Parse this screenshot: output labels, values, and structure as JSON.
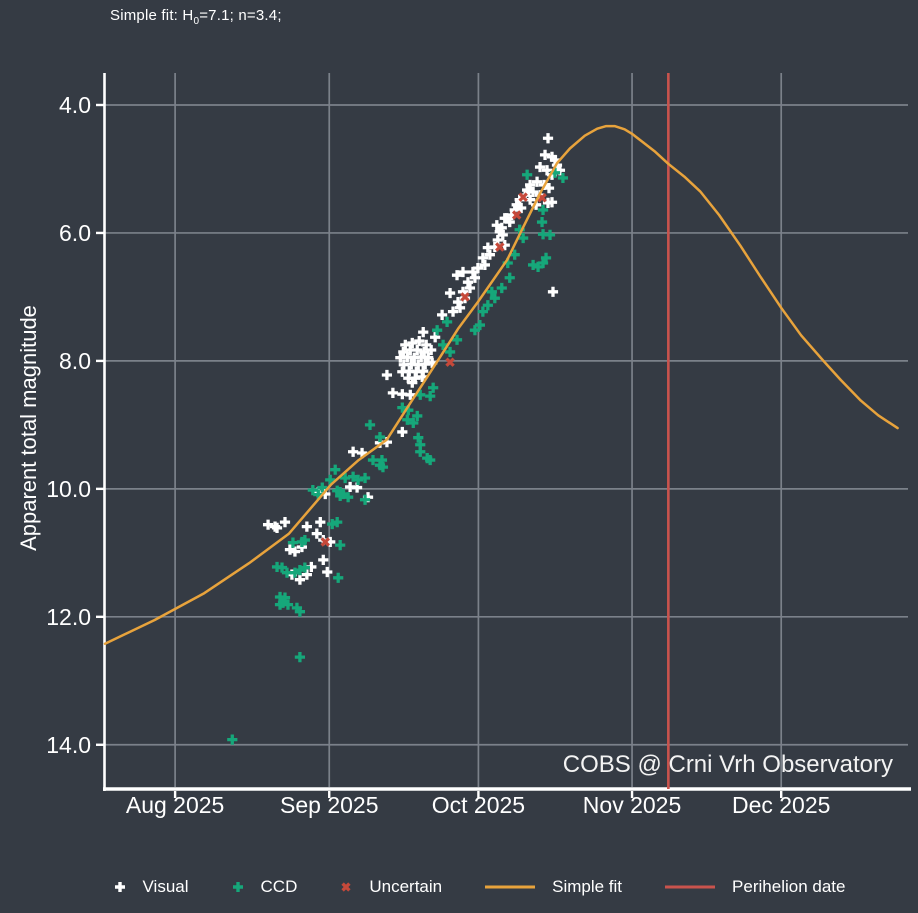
{
  "title": {
    "prefix": "Simple fit: H",
    "sub": "0",
    "suffix": "=7.1; n=3.4;"
  },
  "watermark": "COBS @ Crni Vrh Observatory",
  "colors": {
    "background": "#353b44",
    "grid": "#7b818a",
    "axis": "#ffffff",
    "text": "#ffffff",
    "visual": "#ffffff",
    "ccd": "#16a77a",
    "uncertain": "#c6493a",
    "simple_fit": "#e8a33c",
    "perihelion": "#c9534d"
  },
  "axes": {
    "x": {
      "min": 0,
      "max": 161.5,
      "unit": "days since 2025-07-18",
      "ticks": [
        {
          "d": 14.1,
          "label": "Aug 2025"
        },
        {
          "d": 45.1,
          "label": "Sep 2025"
        },
        {
          "d": 75.1,
          "label": "Oct 2025"
        },
        {
          "d": 106.0,
          "label": "Nov 2025"
        },
        {
          "d": 136.0,
          "label": "Dec 2025"
        }
      ]
    },
    "y": {
      "min": 3.5,
      "max": 14.66,
      "inverted": true,
      "label": "Apparent total magnitude",
      "ticks": [
        {
          "v": 4,
          "label": "4.0"
        },
        {
          "v": 6,
          "label": "6.0"
        },
        {
          "v": 8,
          "label": "8.0"
        },
        {
          "v": 10,
          "label": "10.0"
        },
        {
          "v": 12,
          "label": "12.0"
        },
        {
          "v": 14,
          "label": "14.0"
        }
      ]
    }
  },
  "chart_data": {
    "type": "scatter",
    "title": "Comet apparent total magnitude light curve (COBS)",
    "x_unit": "days since 2025-07-18",
    "ylabel": "Apparent total magnitude",
    "ylim": [
      14.66,
      3.5
    ],
    "grid": true,
    "legend_position": "bottom",
    "series": [
      {
        "name": "Visual",
        "marker": "plus",
        "color": "#ffffff",
        "points": [
          [
            32.8,
            10.56
          ],
          [
            34.2,
            10.59
          ],
          [
            34.6,
            10.61
          ],
          [
            36.2,
            10.52
          ],
          [
            37.2,
            10.95
          ],
          [
            38.2,
            10.98
          ],
          [
            39.6,
            10.91
          ],
          [
            37.6,
            11.34
          ],
          [
            40.6,
            11.34
          ],
          [
            44.7,
            11.3
          ],
          [
            43.9,
            11.11
          ],
          [
            39.2,
            11.42
          ],
          [
            41.5,
            11.22
          ],
          [
            42.6,
            10.7
          ],
          [
            40.6,
            10.59
          ],
          [
            43.3,
            10.52
          ],
          [
            42.9,
            10.05
          ],
          [
            44.3,
            10.08
          ],
          [
            43.9,
            10.8
          ],
          [
            45.3,
            10.83
          ],
          [
            49.3,
            9.97
          ],
          [
            50.7,
            9.98
          ],
          [
            52.9,
            10.13
          ],
          [
            49.9,
            9.42
          ],
          [
            51.7,
            9.44
          ],
          [
            55.3,
            9.28
          ],
          [
            56.7,
            9.27
          ],
          [
            59.8,
            9.11
          ],
          [
            60.4,
            7.75
          ],
          [
            61.8,
            7.72
          ],
          [
            63.2,
            7.69
          ],
          [
            64.6,
            7.75
          ],
          [
            60.0,
            7.86
          ],
          [
            61.4,
            7.83
          ],
          [
            62.8,
            7.83
          ],
          [
            64.2,
            7.86
          ],
          [
            65.6,
            7.83
          ],
          [
            59.4,
            7.95
          ],
          [
            60.8,
            7.94
          ],
          [
            62.2,
            7.95
          ],
          [
            63.6,
            7.94
          ],
          [
            65.0,
            7.95
          ],
          [
            60.1,
            8.06
          ],
          [
            61.6,
            8.05
          ],
          [
            63.0,
            8.06
          ],
          [
            64.4,
            8.05
          ],
          [
            65.8,
            8.03
          ],
          [
            59.8,
            8.17
          ],
          [
            61.2,
            8.16
          ],
          [
            62.6,
            8.17
          ],
          [
            64.0,
            8.16
          ],
          [
            61.0,
            8.27
          ],
          [
            62.4,
            8.27
          ],
          [
            63.8,
            8.25
          ],
          [
            61.8,
            8.34
          ],
          [
            57.9,
            8.5
          ],
          [
            59.8,
            8.52
          ],
          [
            61.4,
            8.53
          ],
          [
            56.7,
            8.22
          ],
          [
            64.0,
            7.55
          ],
          [
            66.4,
            7.63
          ],
          [
            67.8,
            7.28
          ],
          [
            69.4,
            6.94
          ],
          [
            70.0,
            7.23
          ],
          [
            70.8,
            6.66
          ],
          [
            71.0,
            7.08
          ],
          [
            71.4,
            7.17
          ],
          [
            72.0,
            6.61
          ],
          [
            72.0,
            6.92
          ],
          [
            72.4,
            7.02
          ],
          [
            73.0,
            6.77
          ],
          [
            73.4,
            6.86
          ],
          [
            74.0,
            6.61
          ],
          [
            74.4,
            6.7
          ],
          [
            75.0,
            6.55
          ],
          [
            76.0,
            6.39
          ],
          [
            76.4,
            6.5
          ],
          [
            77.0,
            6.23
          ],
          [
            77.4,
            6.34
          ],
          [
            78.4,
            6.22
          ],
          [
            78.8,
            5.88
          ],
          [
            79.0,
            6.11
          ],
          [
            79.4,
            5.98
          ],
          [
            79.8,
            5.92
          ],
          [
            80.0,
            6.03
          ],
          [
            80.4,
            5.77
          ],
          [
            80.8,
            5.77
          ],
          [
            80.4,
            6.19
          ],
          [
            81.4,
            5.83
          ],
          [
            81.8,
            5.72
          ],
          [
            82.4,
            5.64
          ],
          [
            82.8,
            5.56
          ],
          [
            83.4,
            5.48
          ],
          [
            83.7,
            5.61
          ],
          [
            84.5,
            5.41
          ],
          [
            84.9,
            5.33
          ],
          [
            85.5,
            5.48
          ],
          [
            85.5,
            5.25
          ],
          [
            86.1,
            5.36
          ],
          [
            86.7,
            5.56
          ],
          [
            86.9,
            5.2
          ],
          [
            87.5,
            4.97
          ],
          [
            87.5,
            5.41
          ],
          [
            88.3,
            5.25
          ],
          [
            88.5,
            4.78
          ],
          [
            88.9,
            5.02
          ],
          [
            89.1,
            4.52
          ],
          [
            89.1,
            5.53
          ],
          [
            89.3,
            5.3
          ],
          [
            89.9,
            4.81
          ],
          [
            89.9,
            5.09
          ],
          [
            89.9,
            5.52
          ],
          [
            90.1,
            6.92
          ],
          [
            90.5,
            4.86
          ],
          [
            90.9,
            4.94
          ],
          [
            91.5,
            5.02
          ]
        ]
      },
      {
        "name": "CCD",
        "marker": "plus",
        "color": "#16a77a",
        "points": [
          [
            25.6,
            13.92
          ],
          [
            39.2,
            12.63
          ],
          [
            35.2,
            11.81
          ],
          [
            35.8,
            11.78
          ],
          [
            36.8,
            11.81
          ],
          [
            39.2,
            11.92
          ],
          [
            35.2,
            11.69
          ],
          [
            36.2,
            11.7
          ],
          [
            38.6,
            11.86
          ],
          [
            34.6,
            11.22
          ],
          [
            35.6,
            11.23
          ],
          [
            36.6,
            11.31
          ],
          [
            38.2,
            11.31
          ],
          [
            39.2,
            11.27
          ],
          [
            40.2,
            11.23
          ],
          [
            37.8,
            10.84
          ],
          [
            39.6,
            10.83
          ],
          [
            40.2,
            10.8
          ],
          [
            46.9,
            11.39
          ],
          [
            41.8,
            10.02
          ],
          [
            42.9,
            10.09
          ],
          [
            43.7,
            9.98
          ],
          [
            45.3,
            9.86
          ],
          [
            46.3,
            9.7
          ],
          [
            46.7,
            10.03
          ],
          [
            47.3,
            10.11
          ],
          [
            47.9,
            10.08
          ],
          [
            45.7,
            10.55
          ],
          [
            46.7,
            10.52
          ],
          [
            47.3,
            10.88
          ],
          [
            47.3,
            10.05
          ],
          [
            48.3,
            9.83
          ],
          [
            48.9,
            10.13
          ],
          [
            49.9,
            9.81
          ],
          [
            50.9,
            9.86
          ],
          [
            52.3,
            9.83
          ],
          [
            52.3,
            10.17
          ],
          [
            53.9,
            9.55
          ],
          [
            55.3,
            9.63
          ],
          [
            55.9,
            9.66
          ],
          [
            55.7,
            9.55
          ],
          [
            55.3,
            9.19
          ],
          [
            53.3,
            9.0
          ],
          [
            59.8,
            8.73
          ],
          [
            61.0,
            8.77
          ],
          [
            63.4,
            8.53
          ],
          [
            65.4,
            8.55
          ],
          [
            63.0,
            9.2
          ],
          [
            63.4,
            9.31
          ],
          [
            63.4,
            9.42
          ],
          [
            64.8,
            9.52
          ],
          [
            65.4,
            9.55
          ],
          [
            66.8,
            7.52
          ],
          [
            68.8,
            7.39
          ],
          [
            68.0,
            7.75
          ],
          [
            69.4,
            7.86
          ],
          [
            70.8,
            7.67
          ],
          [
            62.8,
            8.86
          ],
          [
            66.0,
            8.42
          ],
          [
            60.8,
            8.92
          ],
          [
            62.0,
            8.97
          ],
          [
            83.4,
            5.95
          ],
          [
            84.1,
            6.08
          ],
          [
            82.4,
            6.34
          ],
          [
            81.0,
            6.47
          ],
          [
            86.1,
            6.5
          ],
          [
            87.1,
            6.53
          ],
          [
            81.4,
            6.7
          ],
          [
            77.8,
            6.92
          ],
          [
            78.4,
            7.02
          ],
          [
            77.0,
            7.13
          ],
          [
            76.0,
            7.23
          ],
          [
            79.8,
            6.86
          ],
          [
            75.4,
            7.44
          ],
          [
            74.4,
            7.52
          ],
          [
            88.1,
            5.64
          ],
          [
            87.9,
            5.83
          ],
          [
            88.1,
            6.02
          ],
          [
            89.5,
            6.03
          ],
          [
            88.7,
            6.39
          ],
          [
            88.1,
            6.47
          ],
          [
            90.5,
            5.06
          ],
          [
            92.1,
            5.14
          ],
          [
            84.9,
            5.09
          ]
        ]
      },
      {
        "name": "Uncertain",
        "marker": "x",
        "color": "#c6493a",
        "points": [
          [
            44.3,
            10.83
          ],
          [
            69.4,
            8.02
          ],
          [
            72.4,
            7.0
          ],
          [
            79.4,
            6.22
          ],
          [
            82.8,
            5.72
          ],
          [
            84.1,
            5.44
          ],
          [
            87.9,
            5.45
          ]
        ]
      },
      {
        "name": "Simple fit",
        "marker": "line",
        "type": "line",
        "color": "#e8a33c",
        "points": [
          [
            0,
            12.42
          ],
          [
            10,
            12.05
          ],
          [
            20,
            11.63
          ],
          [
            29,
            11.16
          ],
          [
            37,
            10.7
          ],
          [
            45.5,
            9.93
          ],
          [
            51,
            9.55
          ],
          [
            56.7,
            9.23
          ],
          [
            61.4,
            8.66
          ],
          [
            67.4,
            7.94
          ],
          [
            71,
            7.5
          ],
          [
            75,
            7.08
          ],
          [
            80.9,
            6.42
          ],
          [
            84.1,
            5.91
          ],
          [
            87.5,
            5.38
          ],
          [
            90.9,
            4.91
          ],
          [
            93.5,
            4.68
          ],
          [
            96.5,
            4.48
          ],
          [
            99,
            4.37
          ],
          [
            100.8,
            4.33
          ],
          [
            102.5,
            4.33
          ],
          [
            104.5,
            4.38
          ],
          [
            106,
            4.45
          ],
          [
            108,
            4.57
          ],
          [
            110.5,
            4.72
          ],
          [
            113.3,
            4.92
          ],
          [
            116.5,
            5.12
          ],
          [
            119.7,
            5.35
          ],
          [
            123.5,
            5.72
          ],
          [
            127.8,
            6.2
          ],
          [
            131.8,
            6.68
          ],
          [
            136,
            7.17
          ],
          [
            140,
            7.6
          ],
          [
            144.5,
            8.0
          ],
          [
            148,
            8.3
          ],
          [
            152,
            8.62
          ],
          [
            155.5,
            8.85
          ],
          [
            159.4,
            9.05
          ]
        ]
      },
      {
        "name": "Perihelion date",
        "marker": "line",
        "type": "vline",
        "color": "#c9534d",
        "x": 113.3
      }
    ]
  },
  "legend": {
    "items": [
      "Visual",
      "CCD",
      "Uncertain",
      "Simple fit",
      "Perihelion date"
    ]
  }
}
